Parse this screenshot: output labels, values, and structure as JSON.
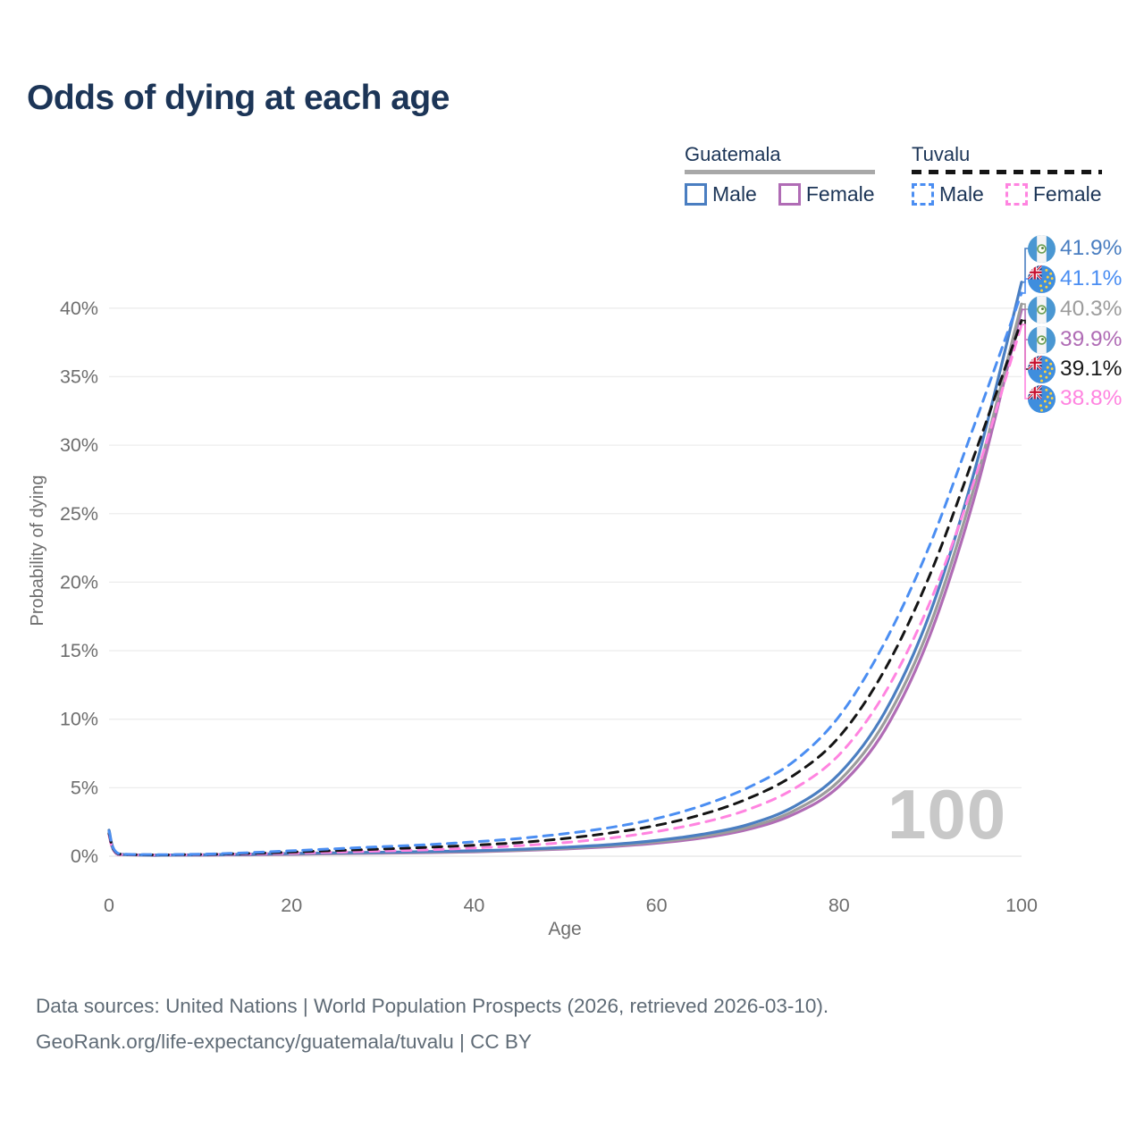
{
  "title": "Odds of dying at each age",
  "legend": {
    "groups": [
      {
        "country": "Guatemala",
        "line_style": "solid",
        "underline_color": "#a8a8a8",
        "items": [
          {
            "label": "Male",
            "color": "#4a7ec1"
          },
          {
            "label": "Female",
            "color": "#b06cb5"
          }
        ]
      },
      {
        "country": "Tuvalu",
        "line_style": "dashed",
        "underline_color": "#151515",
        "items": [
          {
            "label": "Male",
            "color": "#4b8ef2"
          },
          {
            "label": "Female",
            "color": "#ff84e0"
          }
        ]
      }
    ]
  },
  "watermark": "100",
  "footer": {
    "line1": "Data sources: United Nations | World Population Prospects (2026, retrieved 2026-03-10).",
    "line2": "GeoRank.org/life-expectancy/guatemala/tuvalu | CC BY"
  },
  "chart_data": {
    "type": "line",
    "title": "Odds of dying at each age",
    "xlabel": "Age",
    "ylabel": "Probability of dying",
    "xlim": [
      0,
      100
    ],
    "ylim_percent": [
      0,
      46
    ],
    "grid": "horizontal",
    "x_ticks": [
      {
        "label": "0",
        "value": 0
      },
      {
        "label": "20",
        "value": 20
      },
      {
        "label": "40",
        "value": 40
      },
      {
        "label": "60",
        "value": 60
      },
      {
        "label": "80",
        "value": 80
      },
      {
        "label": "100",
        "value": 100
      }
    ],
    "y_ticks": [
      {
        "label": "0%",
        "value": 0
      },
      {
        "label": "5%",
        "value": 5
      },
      {
        "label": "10%",
        "value": 10
      },
      {
        "label": "15%",
        "value": 15
      },
      {
        "label": "20%",
        "value": 20
      },
      {
        "label": "25%",
        "value": 25
      },
      {
        "label": "30%",
        "value": 30
      },
      {
        "label": "35%",
        "value": 35
      },
      {
        "label": "40%",
        "value": 40
      }
    ],
    "ages": [
      0,
      1,
      5,
      10,
      15,
      20,
      25,
      30,
      35,
      40,
      45,
      50,
      55,
      60,
      65,
      70,
      75,
      80,
      85,
      90,
      95,
      100
    ],
    "series": [
      {
        "id": "gt_f",
        "name": "Guatemala Female",
        "country": "Guatemala",
        "sex": "Female",
        "color": "#b06cb5",
        "dashed": false,
        "values_percent": [
          1.6,
          0.11,
          0.06,
          0.08,
          0.1,
          0.14,
          0.18,
          0.22,
          0.26,
          0.32,
          0.41,
          0.53,
          0.7,
          0.95,
          1.33,
          1.95,
          3.05,
          5.1,
          9.2,
          16.2,
          26.6,
          39.9
        ]
      },
      {
        "id": "gt_t",
        "name": "Guatemala Total",
        "country": "Guatemala",
        "sex": "Both",
        "color": "#9c9c9c",
        "dashed": false,
        "values_percent": [
          1.75,
          0.13,
          0.07,
          0.09,
          0.12,
          0.17,
          0.21,
          0.25,
          0.3,
          0.36,
          0.45,
          0.58,
          0.77,
          1.05,
          1.45,
          2.1,
          3.3,
          5.5,
          9.8,
          16.9,
          27.4,
          40.3
        ]
      },
      {
        "id": "gt_m",
        "name": "Guatemala Male",
        "country": "Guatemala",
        "sex": "Male",
        "color": "#4a7ec1",
        "dashed": false,
        "values_percent": [
          1.9,
          0.15,
          0.08,
          0.1,
          0.14,
          0.2,
          0.25,
          0.29,
          0.34,
          0.4,
          0.5,
          0.65,
          0.85,
          1.15,
          1.6,
          2.3,
          3.6,
          6.0,
          10.5,
          17.8,
          28.5,
          41.9
        ]
      },
      {
        "id": "tv_f",
        "name": "Tuvalu Female",
        "country": "Tuvalu",
        "sex": "Female",
        "color": "#ff84e0",
        "dashed": true,
        "values_percent": [
          1.5,
          0.14,
          0.09,
          0.11,
          0.16,
          0.22,
          0.3,
          0.38,
          0.47,
          0.6,
          0.77,
          1.0,
          1.33,
          1.8,
          2.45,
          3.4,
          4.9,
          7.4,
          11.9,
          18.6,
          27.8,
          38.8
        ]
      },
      {
        "id": "tv_t",
        "name": "Tuvalu Total",
        "country": "Tuvalu",
        "sex": "Both",
        "color": "#141414",
        "dashed": true,
        "values_percent": [
          1.65,
          0.17,
          0.1,
          0.13,
          0.2,
          0.3,
          0.42,
          0.53,
          0.65,
          0.8,
          1.0,
          1.3,
          1.7,
          2.25,
          3.05,
          4.2,
          5.9,
          8.7,
          13.6,
          20.6,
          29.6,
          39.1
        ]
      },
      {
        "id": "tv_m",
        "name": "Tuvalu Male",
        "country": "Tuvalu",
        "sex": "Male",
        "color": "#4b8ef2",
        "dashed": true,
        "values_percent": [
          1.8,
          0.2,
          0.12,
          0.15,
          0.25,
          0.4,
          0.55,
          0.7,
          0.85,
          1.05,
          1.3,
          1.65,
          2.1,
          2.75,
          3.7,
          5.0,
          6.9,
          10.2,
          15.6,
          22.8,
          31.8,
          41.1
        ]
      }
    ],
    "end_labels": [
      {
        "series": "gt_m",
        "value": "41.9%",
        "color": "#4a7ec1",
        "flag": "guatemala"
      },
      {
        "series": "tv_m",
        "value": "41.1%",
        "color": "#4b8ef2",
        "flag": "tuvalu"
      },
      {
        "series": "gt_t",
        "value": "40.3%",
        "color": "#9c9c9c",
        "flag": "guatemala"
      },
      {
        "series": "gt_f",
        "value": "39.9%",
        "color": "#b06cb5",
        "flag": "guatemala"
      },
      {
        "series": "tv_t",
        "value": "39.1%",
        "color": "#1a1a1a",
        "flag": "tuvalu"
      },
      {
        "series": "tv_f",
        "value": "38.8%",
        "color": "#ff84e0",
        "flag": "tuvalu"
      }
    ]
  }
}
